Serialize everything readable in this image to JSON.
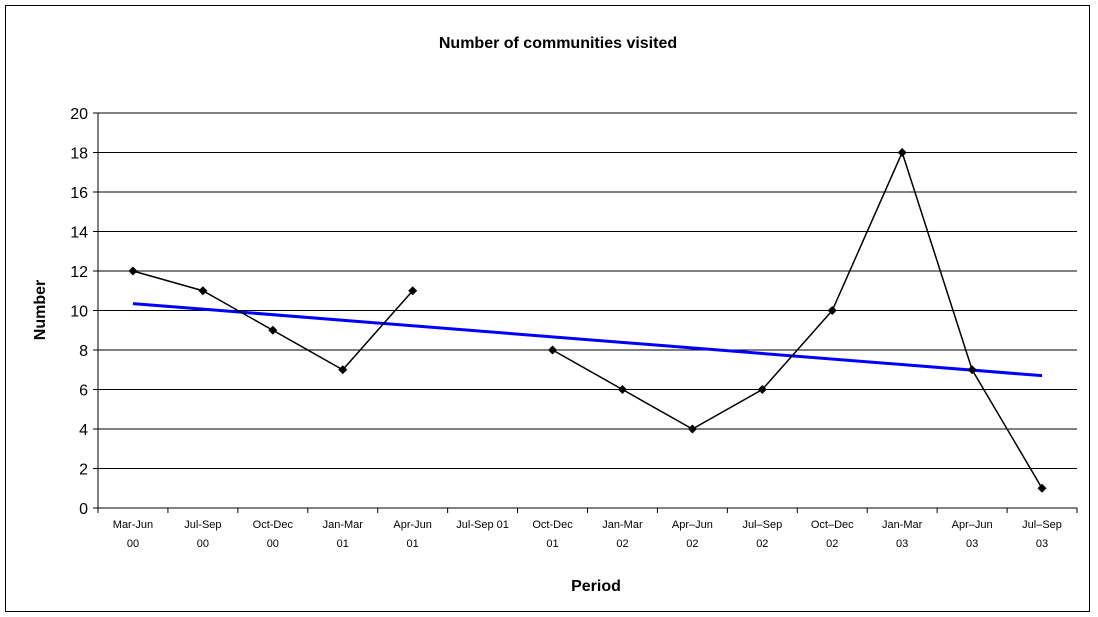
{
  "chart_data": {
    "type": "line",
    "title": "Number of communities visited",
    "xlabel": "Period",
    "ylabel": "Number",
    "ylim": [
      0,
      20
    ],
    "yticks": [
      0,
      2,
      4,
      6,
      8,
      10,
      12,
      14,
      16,
      18,
      20
    ],
    "grid": true,
    "categories": [
      [
        "Mar-Jun",
        "00"
      ],
      [
        "Jul-Sep",
        "00"
      ],
      [
        "Oct-Dec",
        "00"
      ],
      [
        "Jan-Mar",
        "01"
      ],
      [
        "Apr-Jun",
        "01"
      ],
      [
        "Jul-Sep 01",
        ""
      ],
      [
        "Oct-Dec",
        "01"
      ],
      [
        "Jan-Mar",
        "02"
      ],
      [
        "Apr–Jun",
        "02"
      ],
      [
        "Jul–Sep",
        "02"
      ],
      [
        "Oct–Dec",
        "02"
      ],
      [
        "Jan-Mar",
        "03"
      ],
      [
        "Apr–Jun",
        "03"
      ],
      [
        "Jul–Sep",
        "03"
      ]
    ],
    "series": [
      {
        "values": [
          12,
          11,
          9,
          7,
          11,
          null,
          8,
          6,
          4,
          6,
          10,
          18,
          7,
          1
        ],
        "color": "#000000",
        "marker": "diamond"
      }
    ],
    "trendline": {
      "start": 10.35,
      "end": 6.7,
      "color": "#0000ff"
    }
  }
}
